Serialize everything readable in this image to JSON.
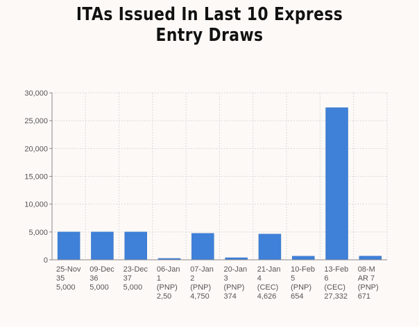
{
  "chart_data": {
    "type": "bar",
    "title_lines": [
      "ITAs Issued In Last 10 Express",
      "Entry Draws"
    ],
    "category_labels": [
      [
        "25-Nov",
        "35",
        "5,000"
      ],
      [
        "09-Dec",
        "36",
        "5,000"
      ],
      [
        "23-Dec",
        "37",
        "5,000"
      ],
      [
        "06-Jan",
        "1",
        "(PNP)",
        "2,50"
      ],
      [
        "07-Jan",
        "2",
        "(PNP)",
        "4,750"
      ],
      [
        "20-Jan",
        "3",
        "(PNP)",
        "374"
      ],
      [
        "21-Jan",
        "4",
        "(CEC)",
        "4,626"
      ],
      [
        "10-Feb",
        "5",
        "(PNP)",
        "654"
      ],
      [
        "13-Feb",
        "6",
        "(CEC)",
        "27,332"
      ],
      [
        "08-M",
        "AR 7",
        "(PNP)",
        "671"
      ]
    ],
    "values": [
      5000,
      5000,
      5000,
      250,
      4750,
      374,
      4626,
      654,
      27332,
      671
    ],
    "y_ticks": [
      "0",
      "5,000",
      "10,000",
      "15,000",
      "20,000",
      "25,000",
      "30,000"
    ],
    "ylim": [
      0,
      30000
    ],
    "grid": true,
    "bar_color": "#3f80d8"
  }
}
